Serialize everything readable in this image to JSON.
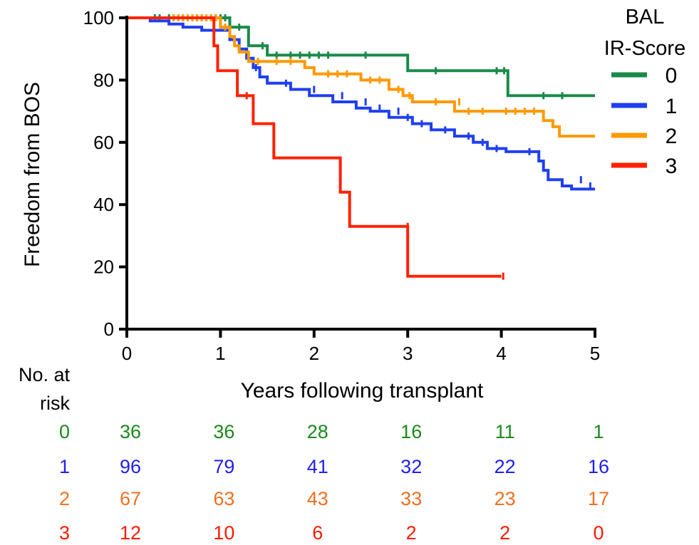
{
  "chart_data": {
    "type": "line",
    "step": true,
    "xlabel": "Years following transplant",
    "ylabel": "Freedom from BOS",
    "xlim": [
      0,
      5
    ],
    "ylim": [
      0,
      100
    ],
    "xticks": [
      "0",
      "1",
      "2",
      "3",
      "4",
      "5"
    ],
    "yticks": [
      "0",
      "20",
      "40",
      "60",
      "80",
      "100"
    ],
    "legend": {
      "title_lines": [
        "BAL",
        "IR-Score"
      ],
      "position": "right"
    },
    "series": [
      {
        "name": "0",
        "color": "#1a8a4a",
        "points": [
          [
            0,
            100
          ],
          [
            1.1,
            100
          ],
          [
            1.1,
            97
          ],
          [
            1.3,
            97
          ],
          [
            1.3,
            91
          ],
          [
            1.5,
            91
          ],
          [
            1.5,
            88
          ],
          [
            3.0,
            88
          ],
          [
            3.0,
            83
          ],
          [
            4.07,
            83
          ],
          [
            4.07,
            75
          ],
          [
            5.0,
            75
          ]
        ],
        "censored": [
          [
            0.3,
            100
          ],
          [
            0.35,
            100
          ],
          [
            0.45,
            100
          ],
          [
            0.5,
            100
          ],
          [
            0.55,
            100
          ],
          [
            0.6,
            100
          ],
          [
            0.7,
            100
          ],
          [
            0.75,
            100
          ],
          [
            0.8,
            100
          ],
          [
            0.9,
            100
          ],
          [
            0.95,
            100
          ],
          [
            1.0,
            100
          ],
          [
            1.05,
            100
          ],
          [
            1.2,
            97
          ],
          [
            1.45,
            91
          ],
          [
            1.6,
            88
          ],
          [
            1.75,
            88
          ],
          [
            1.85,
            88
          ],
          [
            1.95,
            88
          ],
          [
            2.05,
            88
          ],
          [
            2.15,
            88
          ],
          [
            2.55,
            88
          ],
          [
            3.3,
            83
          ],
          [
            3.95,
            83
          ],
          [
            4.03,
            83
          ],
          [
            4.45,
            75
          ],
          [
            4.65,
            75
          ]
        ]
      },
      {
        "name": "1",
        "color": "#1f3ff0",
        "points": [
          [
            0,
            100
          ],
          [
            0.25,
            100
          ],
          [
            0.25,
            99
          ],
          [
            0.45,
            99
          ],
          [
            0.45,
            98
          ],
          [
            0.6,
            98
          ],
          [
            0.6,
            97
          ],
          [
            0.8,
            97
          ],
          [
            0.8,
            96
          ],
          [
            1.1,
            96
          ],
          [
            1.1,
            93
          ],
          [
            1.2,
            93
          ],
          [
            1.2,
            90
          ],
          [
            1.28,
            90
          ],
          [
            1.28,
            87
          ],
          [
            1.35,
            87
          ],
          [
            1.35,
            84
          ],
          [
            1.42,
            84
          ],
          [
            1.42,
            81
          ],
          [
            1.5,
            81
          ],
          [
            1.5,
            79
          ],
          [
            1.75,
            79
          ],
          [
            1.75,
            77
          ],
          [
            1.95,
            77
          ],
          [
            1.95,
            75
          ],
          [
            2.2,
            75
          ],
          [
            2.2,
            73
          ],
          [
            2.45,
            73
          ],
          [
            2.45,
            71
          ],
          [
            2.6,
            71
          ],
          [
            2.6,
            70
          ],
          [
            2.8,
            70
          ],
          [
            2.8,
            68
          ],
          [
            3.05,
            68
          ],
          [
            3.05,
            66
          ],
          [
            3.25,
            66
          ],
          [
            3.25,
            64
          ],
          [
            3.5,
            64
          ],
          [
            3.5,
            62
          ],
          [
            3.7,
            62
          ],
          [
            3.7,
            60
          ],
          [
            3.85,
            60
          ],
          [
            3.85,
            58
          ],
          [
            4.05,
            58
          ],
          [
            4.05,
            57
          ],
          [
            4.4,
            57
          ],
          [
            4.4,
            54
          ],
          [
            4.45,
            54
          ],
          [
            4.45,
            51
          ],
          [
            4.5,
            51
          ],
          [
            4.5,
            48
          ],
          [
            4.65,
            48
          ],
          [
            4.65,
            46
          ],
          [
            4.75,
            46
          ],
          [
            4.75,
            45
          ],
          [
            5.0,
            45
          ]
        ],
        "censored": [
          [
            1.38,
            84
          ],
          [
            1.7,
            79
          ],
          [
            2.0,
            77
          ],
          [
            2.3,
            75
          ],
          [
            2.55,
            73
          ],
          [
            2.7,
            71
          ],
          [
            2.9,
            70
          ],
          [
            3.0,
            68
          ],
          [
            3.15,
            66
          ],
          [
            3.4,
            64
          ],
          [
            3.65,
            62
          ],
          [
            3.8,
            60
          ],
          [
            3.95,
            58
          ],
          [
            4.3,
            57
          ],
          [
            4.85,
            48
          ],
          [
            4.95,
            46
          ]
        ]
      },
      {
        "name": "2",
        "color": "#ff9900",
        "points": [
          [
            0,
            100
          ],
          [
            1.0,
            100
          ],
          [
            1.0,
            97
          ],
          [
            1.1,
            97
          ],
          [
            1.1,
            94
          ],
          [
            1.15,
            94
          ],
          [
            1.15,
            91
          ],
          [
            1.2,
            91
          ],
          [
            1.2,
            89
          ],
          [
            1.3,
            89
          ],
          [
            1.3,
            86
          ],
          [
            1.9,
            86
          ],
          [
            1.9,
            84
          ],
          [
            2.0,
            84
          ],
          [
            2.0,
            82
          ],
          [
            2.5,
            82
          ],
          [
            2.5,
            80
          ],
          [
            2.8,
            80
          ],
          [
            2.8,
            77
          ],
          [
            2.95,
            77
          ],
          [
            2.95,
            75
          ],
          [
            3.05,
            75
          ],
          [
            3.05,
            73
          ],
          [
            3.5,
            73
          ],
          [
            3.5,
            70
          ],
          [
            4.45,
            70
          ],
          [
            4.45,
            67
          ],
          [
            4.55,
            67
          ],
          [
            4.55,
            65
          ],
          [
            4.62,
            65
          ],
          [
            4.62,
            62
          ],
          [
            5.0,
            62
          ]
        ],
        "censored": [
          [
            0.5,
            100
          ],
          [
            0.55,
            100
          ],
          [
            0.6,
            100
          ],
          [
            0.65,
            100
          ],
          [
            0.7,
            100
          ],
          [
            0.75,
            100
          ],
          [
            0.8,
            100
          ],
          [
            0.85,
            100
          ],
          [
            0.9,
            100
          ],
          [
            0.95,
            100
          ],
          [
            1.05,
            97
          ],
          [
            1.4,
            86
          ],
          [
            1.6,
            86
          ],
          [
            1.75,
            86
          ],
          [
            2.15,
            82
          ],
          [
            2.25,
            82
          ],
          [
            2.35,
            82
          ],
          [
            2.6,
            80
          ],
          [
            2.7,
            80
          ],
          [
            2.9,
            77
          ],
          [
            3.02,
            75
          ],
          [
            3.3,
            73
          ],
          [
            3.55,
            73
          ],
          [
            3.65,
            70
          ],
          [
            3.8,
            70
          ],
          [
            4.05,
            70
          ],
          [
            4.15,
            70
          ],
          [
            4.25,
            70
          ],
          [
            4.35,
            70
          ]
        ]
      },
      {
        "name": "3",
        "color": "#ff2200",
        "points": [
          [
            0,
            100
          ],
          [
            0.93,
            100
          ],
          [
            0.93,
            91
          ],
          [
            0.97,
            91
          ],
          [
            0.97,
            83
          ],
          [
            1.18,
            83
          ],
          [
            1.18,
            75
          ],
          [
            1.35,
            75
          ],
          [
            1.35,
            66
          ],
          [
            1.57,
            66
          ],
          [
            1.57,
            55
          ],
          [
            2.28,
            55
          ],
          [
            2.28,
            44
          ],
          [
            2.38,
            44
          ],
          [
            2.38,
            33
          ],
          [
            3.0,
            33
          ],
          [
            3.0,
            17
          ],
          [
            4.0,
            17
          ]
        ],
        "censored": [
          [
            1.28,
            75
          ],
          [
            3.0,
            33
          ],
          [
            4.02,
            17
          ]
        ]
      }
    ]
  },
  "risk_table": {
    "header_lines": [
      "No. at",
      "risk"
    ],
    "x_positions": [
      0,
      1,
      2,
      3,
      4,
      5
    ],
    "rows": [
      {
        "label": "0",
        "color": "#1a8a1a",
        "values": [
          "36",
          "36",
          "28",
          "16",
          "11",
          "1"
        ]
      },
      {
        "label": "1",
        "color": "#1f1ff0",
        "values": [
          "96",
          "79",
          "41",
          "32",
          "22",
          "16"
        ]
      },
      {
        "label": "2",
        "color": "#f07020",
        "values": [
          "67",
          "63",
          "43",
          "33",
          "23",
          "17"
        ]
      },
      {
        "label": "3",
        "color": "#ff1a00",
        "values": [
          "12",
          "10",
          "6",
          "2",
          "2",
          "0"
        ]
      }
    ]
  }
}
